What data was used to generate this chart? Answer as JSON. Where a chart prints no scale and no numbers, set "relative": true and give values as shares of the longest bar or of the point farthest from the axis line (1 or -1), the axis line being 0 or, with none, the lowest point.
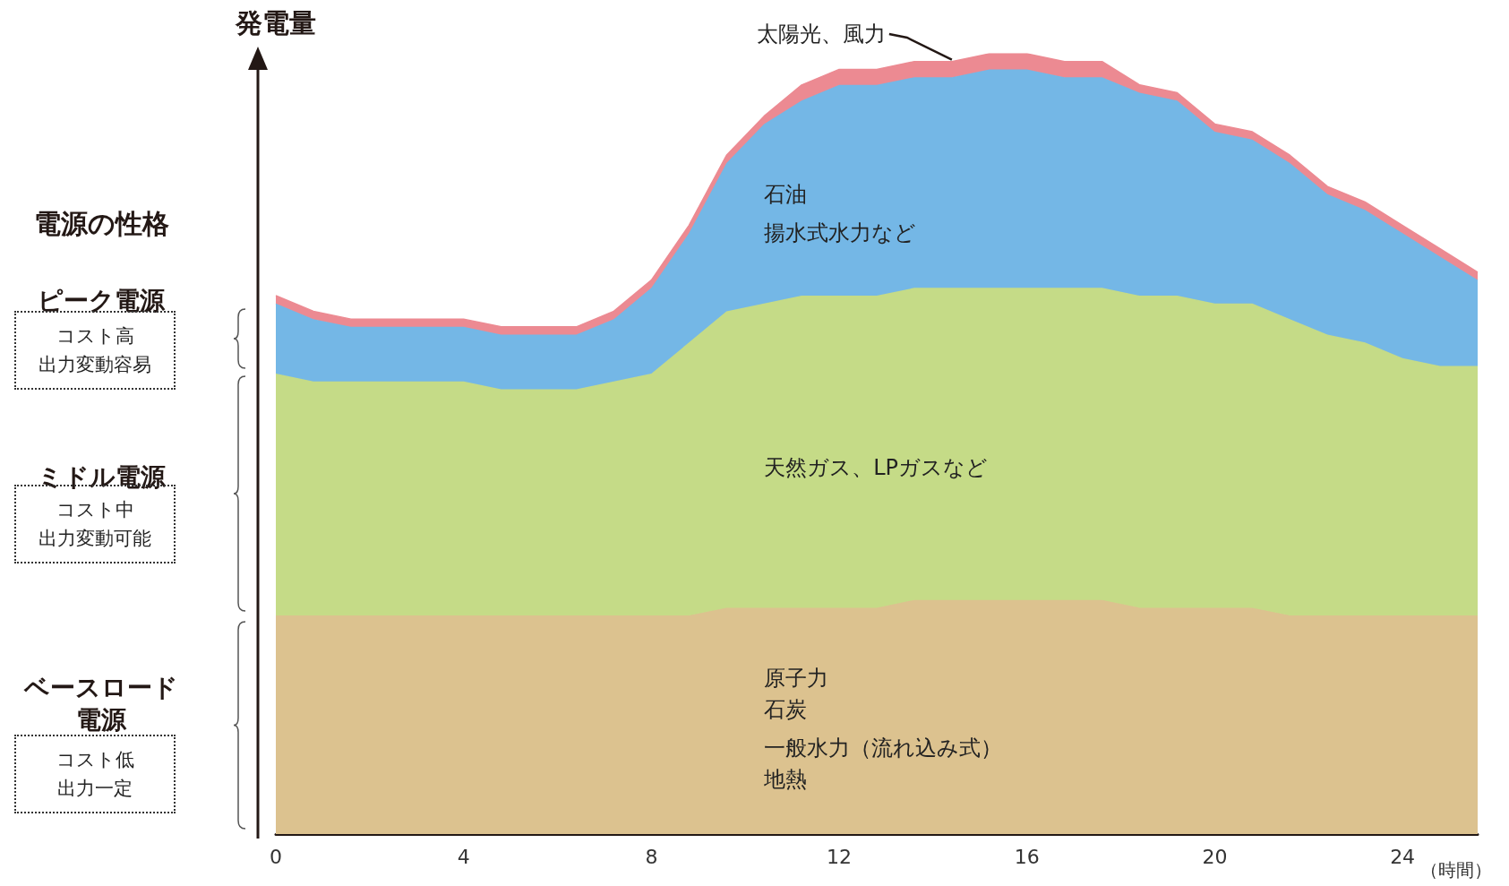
{
  "chart_data": {
    "type": "area",
    "stacked": true,
    "relative": true,
    "ylabel": "発電量",
    "xlabel": "（時間）",
    "xlim": [
      0,
      25.6
    ],
    "xticks": [
      0,
      4,
      8,
      12,
      16,
      20,
      24
    ],
    "x": [
      0,
      0.8,
      1.6,
      2.4,
      3.2,
      4,
      4.8,
      5.6,
      6.4,
      7.2,
      8,
      8.8,
      9.6,
      10.4,
      11.2,
      12,
      12.8,
      13.6,
      14.4,
      15.2,
      16,
      16.8,
      17.6,
      18.4,
      19.2,
      20,
      20.8,
      21.6,
      22.4,
      23.2,
      24,
      24.8,
      25.6
    ],
    "series": [
      {
        "color": "#dcc28f",
        "values": [
          0.28,
          0.28,
          0.28,
          0.28,
          0.28,
          0.28,
          0.28,
          0.28,
          0.28,
          0.28,
          0.28,
          0.28,
          0.29,
          0.29,
          0.29,
          0.29,
          0.29,
          0.3,
          0.3,
          0.3,
          0.3,
          0.3,
          0.3,
          0.29,
          0.29,
          0.29,
          0.29,
          0.28,
          0.28,
          0.28,
          0.28,
          0.28,
          0.28
        ]
      },
      {
        "color": "#c5db87",
        "values": [
          0.31,
          0.3,
          0.3,
          0.3,
          0.3,
          0.3,
          0.29,
          0.29,
          0.29,
          0.3,
          0.31,
          0.35,
          0.38,
          0.39,
          0.4,
          0.4,
          0.4,
          0.4,
          0.4,
          0.4,
          0.4,
          0.4,
          0.4,
          0.4,
          0.4,
          0.39,
          0.39,
          0.38,
          0.36,
          0.35,
          0.33,
          0.32,
          0.32
        ]
      },
      {
        "color": "#74b7e6",
        "values": [
          0.09,
          0.08,
          0.07,
          0.07,
          0.07,
          0.07,
          0.07,
          0.07,
          0.07,
          0.08,
          0.11,
          0.14,
          0.19,
          0.23,
          0.25,
          0.27,
          0.27,
          0.27,
          0.27,
          0.28,
          0.28,
          0.27,
          0.27,
          0.26,
          0.25,
          0.22,
          0.21,
          0.2,
          0.18,
          0.17,
          0.16,
          0.14,
          0.11
        ]
      },
      {
        "color": "#ec8a92",
        "values": [
          0.01,
          0.01,
          0.01,
          0.01,
          0.01,
          0.01,
          0.01,
          0.01,
          0.01,
          0.01,
          0.01,
          0.01,
          0.01,
          0.01,
          0.02,
          0.02,
          0.02,
          0.02,
          0.02,
          0.02,
          0.02,
          0.02,
          0.02,
          0.01,
          0.01,
          0.01,
          0.01,
          0.01,
          0.01,
          0.01,
          0.01,
          0.01,
          0.01
        ]
      }
    ],
    "annotations": [
      "電源の性格",
      "ピーク電源",
      "コスト高",
      "出力変動容易",
      "ミドル電源",
      "コスト中",
      "出力変動可能",
      "ベースロード電源",
      "コスト低",
      "出力一定",
      "原子力",
      "石炭",
      "一般水力（流れ込み式）",
      "地熱",
      "天然ガス、LPガスなど",
      "石油",
      "揚水式水力など",
      "太陽光、風力"
    ]
  }
}
